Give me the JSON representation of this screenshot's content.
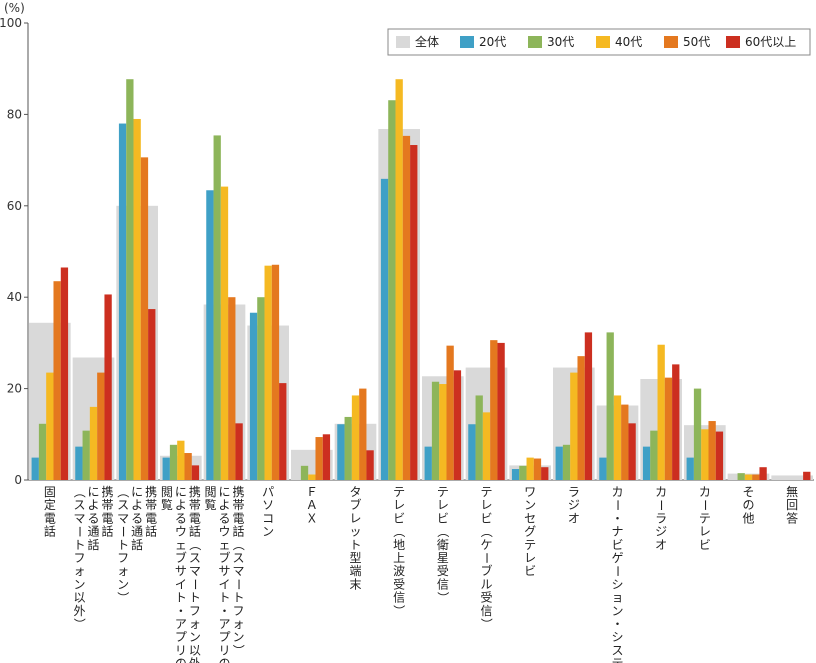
{
  "chart_data": {
    "type": "bar",
    "unit_label": "(%)",
    "ylim": [
      0,
      100
    ],
    "yticks": [
      "0",
      "20",
      "40",
      "60",
      "80",
      "100"
    ],
    "grid": false,
    "legend_position": "top-right",
    "categories": [
      "固定電話",
      "携帯電話（スマートフォン以外）による通話",
      "携帯電話（スマートフォン）による通話",
      "携帯電話（スマートフォン以外）によるウェブサイト・アプリの閲覧",
      "携帯電話（スマートフォン）によるウェブサイト・アプリの閲覧",
      "パソコン",
      "ＦＡＸ",
      "タブレット型端末",
      "テレビ（地上波受信）",
      "テレビ（衛星受信）",
      "テレビ（ケーブル受信）",
      "ワンセグテレビ",
      "ラジオ",
      "カー・ナビゲーション・システム",
      "カーラジオ",
      "カーテレビ",
      "その他",
      "無回答"
    ],
    "series": [
      {
        "name": "全体",
        "color": "#d9d9d9",
        "values": [
          34.4,
          26.8,
          60.0,
          5.3,
          38.4,
          33.8,
          6.6,
          12.3,
          76.8,
          22.7,
          24.6,
          3.2,
          24.6,
          16.3,
          22.1,
          12.0,
          1.4,
          1.0
        ]
      },
      {
        "name": "20代",
        "color": "#3fa0c6",
        "values": [
          4.9,
          7.3,
          78.0,
          4.9,
          63.4,
          36.6,
          0.0,
          12.2,
          65.9,
          7.3,
          12.2,
          2.4,
          7.3,
          4.9,
          7.3,
          4.9,
          0.0,
          0.0
        ]
      },
      {
        "name": "30代",
        "color": "#8db55a",
        "values": [
          12.3,
          10.8,
          87.7,
          7.7,
          75.4,
          40.0,
          3.1,
          13.8,
          83.1,
          21.5,
          18.5,
          3.1,
          7.7,
          32.3,
          10.8,
          20.0,
          1.5,
          0.0
        ]
      },
      {
        "name": "40代",
        "color": "#f5b922",
        "values": [
          23.5,
          16.0,
          79.0,
          8.6,
          64.2,
          46.9,
          1.2,
          18.5,
          87.7,
          21.0,
          14.8,
          4.9,
          23.5,
          18.5,
          29.6,
          11.1,
          1.2,
          0.0
        ]
      },
      {
        "name": "50代",
        "color": "#e4781f",
        "values": [
          43.5,
          23.5,
          70.6,
          5.9,
          40.0,
          47.1,
          9.4,
          20.0,
          75.3,
          29.4,
          30.6,
          4.7,
          27.1,
          16.5,
          22.4,
          12.9,
          1.2,
          0.0
        ]
      },
      {
        "name": "60代以上",
        "color": "#cc2f20",
        "values": [
          46.5,
          40.6,
          37.4,
          3.2,
          12.4,
          21.2,
          10.0,
          6.5,
          73.3,
          24.0,
          30.0,
          2.8,
          32.3,
          12.4,
          25.3,
          10.6,
          2.8,
          1.8
        ]
      }
    ],
    "category_label_lines": [
      [
        "固定電話"
      ],
      [
        "携帯電話",
        "による通話",
        "（スマートフォン以外）"
      ],
      [
        "携帯電話",
        "による通話",
        "（スマートフォン）"
      ],
      [
        "携帯電話（スマートフォン以外）",
        "によるウェブサイト・アプリの",
        "閲覧"
      ],
      [
        "携帯電話（スマートフォン）",
        "によるウェブサイト・アプリの",
        "閲覧"
      ],
      [
        "パソコン"
      ],
      [
        "ＦＡＸ"
      ],
      [
        "タブレット型端末"
      ],
      [
        "テレビ（地上波受信）"
      ],
      [
        "テレビ（衛星受信）"
      ],
      [
        "テレビ（ケーブル受信）"
      ],
      [
        "ワンセグテレビ"
      ],
      [
        "ラジオ"
      ],
      [
        "カー・ナビゲーション・システム"
      ],
      [
        "カーラジオ"
      ],
      [
        "カーテレビ"
      ],
      [
        "その他"
      ],
      [
        "無回答"
      ]
    ]
  }
}
